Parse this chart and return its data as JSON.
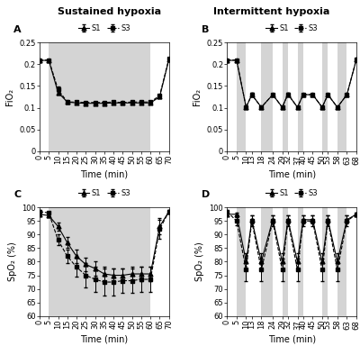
{
  "title_left": "Sustained hypoxia",
  "title_right": "Intermittent hypoxia",
  "bg_color": "#d4d4d4",
  "A": {
    "label": "A",
    "xlabel": "Time (min)",
    "ylabel": "FiO₂",
    "ylim": [
      0,
      0.25
    ],
    "yticks": [
      0,
      0.05,
      0.1,
      0.15,
      0.2,
      0.25
    ],
    "xlim": [
      0,
      70
    ],
    "xticks": [
      0,
      5,
      10,
      15,
      20,
      25,
      30,
      35,
      40,
      45,
      50,
      55,
      60,
      65,
      70
    ],
    "xticklabels": [
      "0",
      "5",
      "10",
      "15",
      "20",
      "25",
      "30",
      "35",
      "40",
      "45",
      "50",
      "55",
      "60",
      "65",
      "70"
    ],
    "shading": [
      [
        5,
        60
      ]
    ],
    "S1_x": [
      0,
      5,
      10,
      15,
      20,
      25,
      30,
      35,
      40,
      45,
      50,
      55,
      60,
      65,
      70
    ],
    "S1_y": [
      0.209,
      0.209,
      0.135,
      0.113,
      0.111,
      0.11,
      0.11,
      0.11,
      0.111,
      0.111,
      0.111,
      0.111,
      0.111,
      0.125,
      0.211
    ],
    "S1_err": [
      0.002,
      0.002,
      0.005,
      0.003,
      0.002,
      0.002,
      0.002,
      0.002,
      0.002,
      0.002,
      0.002,
      0.002,
      0.002,
      0.003,
      0.003
    ],
    "S3_x": [
      0,
      5,
      10,
      15,
      20,
      25,
      30,
      35,
      40,
      45,
      50,
      55,
      60,
      65,
      70
    ],
    "S3_y": [
      0.209,
      0.21,
      0.142,
      0.113,
      0.113,
      0.112,
      0.112,
      0.112,
      0.113,
      0.112,
      0.113,
      0.113,
      0.113,
      0.128,
      0.213
    ],
    "S3_err": [
      0.002,
      0.002,
      0.006,
      0.003,
      0.002,
      0.002,
      0.002,
      0.002,
      0.002,
      0.002,
      0.002,
      0.002,
      0.002,
      0.003,
      0.003
    ]
  },
  "B": {
    "label": "B",
    "xlabel": "Time (min)",
    "ylabel": "FiO₂",
    "ylim": [
      0,
      0.25
    ],
    "yticks": [
      0,
      0.05,
      0.1,
      0.15,
      0.2,
      0.25
    ],
    "xlim": [
      0,
      68
    ],
    "xticks": [
      0,
      5,
      10,
      13,
      18,
      24,
      29,
      32,
      37,
      40,
      45,
      50,
      53,
      58,
      63,
      68
    ],
    "xticklabels": [
      "0",
      "5",
      "10",
      "13",
      "18",
      "24",
      "29",
      "32",
      "37",
      "40",
      "45",
      "50",
      "53",
      "58",
      "63",
      "68"
    ],
    "shading": [
      [
        5,
        10
      ],
      [
        18,
        24
      ],
      [
        29,
        32
      ],
      [
        37,
        40
      ],
      [
        50,
        53
      ],
      [
        58,
        63
      ]
    ],
    "S1_x": [
      0,
      5,
      10,
      13,
      18,
      24,
      29,
      32,
      37,
      40,
      45,
      50,
      53,
      58,
      63,
      68
    ],
    "S1_y": [
      0.209,
      0.209,
      0.101,
      0.13,
      0.101,
      0.13,
      0.101,
      0.131,
      0.101,
      0.13,
      0.13,
      0.101,
      0.13,
      0.101,
      0.13,
      0.211
    ],
    "S1_err": [
      0.002,
      0.002,
      0.002,
      0.004,
      0.002,
      0.003,
      0.002,
      0.003,
      0.002,
      0.003,
      0.003,
      0.002,
      0.003,
      0.002,
      0.003,
      0.003
    ],
    "S3_x": [
      0,
      5,
      10,
      13,
      18,
      24,
      29,
      32,
      37,
      40,
      45,
      50,
      53,
      58,
      63,
      68
    ],
    "S3_y": [
      0.21,
      0.21,
      0.101,
      0.13,
      0.101,
      0.13,
      0.101,
      0.131,
      0.101,
      0.13,
      0.13,
      0.101,
      0.13,
      0.101,
      0.13,
      0.212
    ],
    "S3_err": [
      0.002,
      0.002,
      0.002,
      0.004,
      0.002,
      0.003,
      0.002,
      0.003,
      0.002,
      0.003,
      0.003,
      0.002,
      0.003,
      0.002,
      0.003,
      0.003
    ]
  },
  "C": {
    "label": "C",
    "xlabel": "Time (min)",
    "ylabel": "SpO₂ (%)",
    "ylim": [
      60,
      100
    ],
    "yticks": [
      60,
      65,
      70,
      75,
      80,
      85,
      90,
      95,
      100
    ],
    "xlim": [
      0,
      70
    ],
    "xticks": [
      0,
      5,
      10,
      15,
      20,
      25,
      30,
      35,
      40,
      45,
      50,
      55,
      60,
      65,
      70
    ],
    "xticklabels": [
      "0",
      "5",
      "10",
      "15",
      "20",
      "25",
      "30",
      "35",
      "40",
      "45",
      "50",
      "55",
      "60",
      "65",
      "70"
    ],
    "shading": [
      [
        5,
        60
      ]
    ],
    "S1_x": [
      0,
      5,
      10,
      15,
      20,
      25,
      30,
      35,
      40,
      45,
      50,
      55,
      60,
      65,
      70
    ],
    "S1_y": [
      97.5,
      97.0,
      93.0,
      87.0,
      82.0,
      79.0,
      77.5,
      75.5,
      75.0,
      75.0,
      75.5,
      75.5,
      75.5,
      93.0,
      98.5
    ],
    "S1_err": [
      0.5,
      0.5,
      1.5,
      2.0,
      2.5,
      2.5,
      2.5,
      2.5,
      2.5,
      2.5,
      2.5,
      2.5,
      2.5,
      3.0,
      0.5
    ],
    "S3_x": [
      0,
      5,
      10,
      15,
      20,
      25,
      30,
      35,
      40,
      45,
      50,
      55,
      60,
      65,
      70
    ],
    "S3_y": [
      98.5,
      98.0,
      88.0,
      82.0,
      78.0,
      75.0,
      73.5,
      72.5,
      72.5,
      73.0,
      73.0,
      73.5,
      73.5,
      92.0,
      98.5
    ],
    "S3_err": [
      0.5,
      0.5,
      2.0,
      2.5,
      3.5,
      4.5,
      4.5,
      5.0,
      5.0,
      4.5,
      4.5,
      4.5,
      4.5,
      3.5,
      0.5
    ]
  },
  "D": {
    "label": "D",
    "xlabel": "Time (min)",
    "ylabel": "SpO₂ (%)",
    "ylim": [
      60,
      100
    ],
    "yticks": [
      60,
      65,
      70,
      75,
      80,
      85,
      90,
      95,
      100
    ],
    "xlim": [
      0,
      68
    ],
    "xticks": [
      0,
      5,
      10,
      13,
      18,
      24,
      29,
      32,
      37,
      40,
      45,
      50,
      53,
      58,
      63,
      68
    ],
    "xticklabels": [
      "0",
      "5",
      "10",
      "13",
      "18",
      "24",
      "29",
      "32",
      "37",
      "40",
      "45",
      "50",
      "53",
      "58",
      "63",
      "68"
    ],
    "shading": [
      [
        5,
        10
      ],
      [
        18,
        24
      ],
      [
        29,
        32
      ],
      [
        37,
        40
      ],
      [
        50,
        53
      ],
      [
        58,
        63
      ]
    ],
    "S1_x": [
      0,
      5,
      10,
      13,
      18,
      24,
      29,
      32,
      37,
      40,
      45,
      50,
      53,
      58,
      63,
      68
    ],
    "S1_y": [
      97.5,
      97.5,
      80.0,
      95.5,
      80.0,
      95.5,
      80.0,
      95.5,
      80.0,
      95.5,
      95.5,
      80.0,
      95.5,
      80.0,
      95.5,
      97.5
    ],
    "S1_err": [
      0.5,
      0.5,
      3.0,
      1.5,
      3.0,
      1.5,
      3.0,
      1.5,
      3.0,
      1.5,
      1.5,
      3.0,
      1.5,
      3.0,
      1.5,
      0.5
    ],
    "S3_x": [
      0,
      5,
      10,
      13,
      18,
      24,
      29,
      32,
      37,
      40,
      45,
      50,
      53,
      58,
      63,
      68
    ],
    "S3_y": [
      98.5,
      95.0,
      77.0,
      95.0,
      77.0,
      95.0,
      77.0,
      95.0,
      77.0,
      95.0,
      95.0,
      77.0,
      95.0,
      77.0,
      95.0,
      97.5
    ],
    "S3_err": [
      0.5,
      1.5,
      4.0,
      2.0,
      4.0,
      2.0,
      4.0,
      2.0,
      4.0,
      2.0,
      2.0,
      4.0,
      2.0,
      4.0,
      2.0,
      0.5
    ]
  },
  "marker_S1": "^",
  "marker_S3": "s",
  "line_color": "black",
  "line_width": 0.8,
  "marker_size": 3.5,
  "elinewidth": 0.7,
  "capsize": 1.5,
  "fontsize": 6,
  "label_fontsize": 7,
  "title_fontsize": 8
}
